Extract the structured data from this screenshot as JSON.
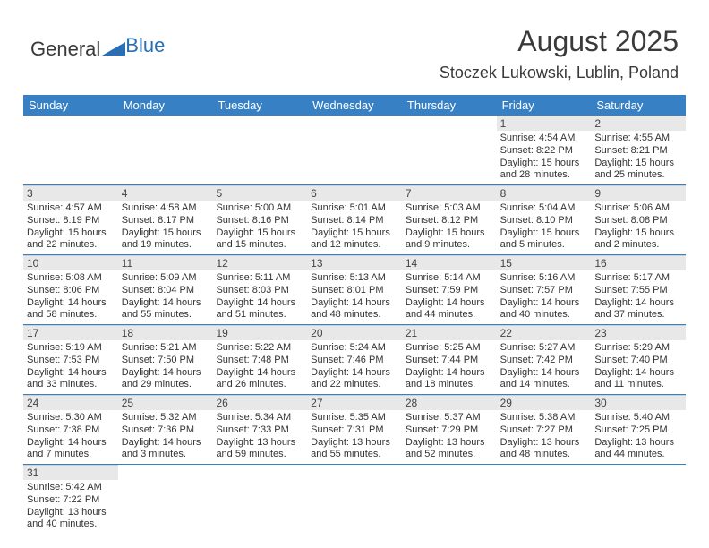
{
  "logo": {
    "general": "General",
    "blue": "Blue"
  },
  "title": "August 2025",
  "location": "Stoczek Lukowski, Lublin, Poland",
  "colors": {
    "header_bg": "#3880c4",
    "header_fg": "#ffffff",
    "daynum_bg": "#e8e8e8",
    "row_border": "#3880c4",
    "text": "#333333",
    "logo_blue": "#2a6fb3"
  },
  "day_headers": [
    "Sunday",
    "Monday",
    "Tuesday",
    "Wednesday",
    "Thursday",
    "Friday",
    "Saturday"
  ],
  "weeks": [
    [
      {
        "empty": true
      },
      {
        "empty": true
      },
      {
        "empty": true
      },
      {
        "empty": true
      },
      {
        "empty": true
      },
      {
        "day": "1",
        "sunrise": "Sunrise: 4:54 AM",
        "sunset": "Sunset: 8:22 PM",
        "daylight1": "Daylight: 15 hours",
        "daylight2": "and 28 minutes."
      },
      {
        "day": "2",
        "sunrise": "Sunrise: 4:55 AM",
        "sunset": "Sunset: 8:21 PM",
        "daylight1": "Daylight: 15 hours",
        "daylight2": "and 25 minutes."
      }
    ],
    [
      {
        "day": "3",
        "sunrise": "Sunrise: 4:57 AM",
        "sunset": "Sunset: 8:19 PM",
        "daylight1": "Daylight: 15 hours",
        "daylight2": "and 22 minutes."
      },
      {
        "day": "4",
        "sunrise": "Sunrise: 4:58 AM",
        "sunset": "Sunset: 8:17 PM",
        "daylight1": "Daylight: 15 hours",
        "daylight2": "and 19 minutes."
      },
      {
        "day": "5",
        "sunrise": "Sunrise: 5:00 AM",
        "sunset": "Sunset: 8:16 PM",
        "daylight1": "Daylight: 15 hours",
        "daylight2": "and 15 minutes."
      },
      {
        "day": "6",
        "sunrise": "Sunrise: 5:01 AM",
        "sunset": "Sunset: 8:14 PM",
        "daylight1": "Daylight: 15 hours",
        "daylight2": "and 12 minutes."
      },
      {
        "day": "7",
        "sunrise": "Sunrise: 5:03 AM",
        "sunset": "Sunset: 8:12 PM",
        "daylight1": "Daylight: 15 hours",
        "daylight2": "and 9 minutes."
      },
      {
        "day": "8",
        "sunrise": "Sunrise: 5:04 AM",
        "sunset": "Sunset: 8:10 PM",
        "daylight1": "Daylight: 15 hours",
        "daylight2": "and 5 minutes."
      },
      {
        "day": "9",
        "sunrise": "Sunrise: 5:06 AM",
        "sunset": "Sunset: 8:08 PM",
        "daylight1": "Daylight: 15 hours",
        "daylight2": "and 2 minutes."
      }
    ],
    [
      {
        "day": "10",
        "sunrise": "Sunrise: 5:08 AM",
        "sunset": "Sunset: 8:06 PM",
        "daylight1": "Daylight: 14 hours",
        "daylight2": "and 58 minutes."
      },
      {
        "day": "11",
        "sunrise": "Sunrise: 5:09 AM",
        "sunset": "Sunset: 8:04 PM",
        "daylight1": "Daylight: 14 hours",
        "daylight2": "and 55 minutes."
      },
      {
        "day": "12",
        "sunrise": "Sunrise: 5:11 AM",
        "sunset": "Sunset: 8:03 PM",
        "daylight1": "Daylight: 14 hours",
        "daylight2": "and 51 minutes."
      },
      {
        "day": "13",
        "sunrise": "Sunrise: 5:13 AM",
        "sunset": "Sunset: 8:01 PM",
        "daylight1": "Daylight: 14 hours",
        "daylight2": "and 48 minutes."
      },
      {
        "day": "14",
        "sunrise": "Sunrise: 5:14 AM",
        "sunset": "Sunset: 7:59 PM",
        "daylight1": "Daylight: 14 hours",
        "daylight2": "and 44 minutes."
      },
      {
        "day": "15",
        "sunrise": "Sunrise: 5:16 AM",
        "sunset": "Sunset: 7:57 PM",
        "daylight1": "Daylight: 14 hours",
        "daylight2": "and 40 minutes."
      },
      {
        "day": "16",
        "sunrise": "Sunrise: 5:17 AM",
        "sunset": "Sunset: 7:55 PM",
        "daylight1": "Daylight: 14 hours",
        "daylight2": "and 37 minutes."
      }
    ],
    [
      {
        "day": "17",
        "sunrise": "Sunrise: 5:19 AM",
        "sunset": "Sunset: 7:53 PM",
        "daylight1": "Daylight: 14 hours",
        "daylight2": "and 33 minutes."
      },
      {
        "day": "18",
        "sunrise": "Sunrise: 5:21 AM",
        "sunset": "Sunset: 7:50 PM",
        "daylight1": "Daylight: 14 hours",
        "daylight2": "and 29 minutes."
      },
      {
        "day": "19",
        "sunrise": "Sunrise: 5:22 AM",
        "sunset": "Sunset: 7:48 PM",
        "daylight1": "Daylight: 14 hours",
        "daylight2": "and 26 minutes."
      },
      {
        "day": "20",
        "sunrise": "Sunrise: 5:24 AM",
        "sunset": "Sunset: 7:46 PM",
        "daylight1": "Daylight: 14 hours",
        "daylight2": "and 22 minutes."
      },
      {
        "day": "21",
        "sunrise": "Sunrise: 5:25 AM",
        "sunset": "Sunset: 7:44 PM",
        "daylight1": "Daylight: 14 hours",
        "daylight2": "and 18 minutes."
      },
      {
        "day": "22",
        "sunrise": "Sunrise: 5:27 AM",
        "sunset": "Sunset: 7:42 PM",
        "daylight1": "Daylight: 14 hours",
        "daylight2": "and 14 minutes."
      },
      {
        "day": "23",
        "sunrise": "Sunrise: 5:29 AM",
        "sunset": "Sunset: 7:40 PM",
        "daylight1": "Daylight: 14 hours",
        "daylight2": "and 11 minutes."
      }
    ],
    [
      {
        "day": "24",
        "sunrise": "Sunrise: 5:30 AM",
        "sunset": "Sunset: 7:38 PM",
        "daylight1": "Daylight: 14 hours",
        "daylight2": "and 7 minutes."
      },
      {
        "day": "25",
        "sunrise": "Sunrise: 5:32 AM",
        "sunset": "Sunset: 7:36 PM",
        "daylight1": "Daylight: 14 hours",
        "daylight2": "and 3 minutes."
      },
      {
        "day": "26",
        "sunrise": "Sunrise: 5:34 AM",
        "sunset": "Sunset: 7:33 PM",
        "daylight1": "Daylight: 13 hours",
        "daylight2": "and 59 minutes."
      },
      {
        "day": "27",
        "sunrise": "Sunrise: 5:35 AM",
        "sunset": "Sunset: 7:31 PM",
        "daylight1": "Daylight: 13 hours",
        "daylight2": "and 55 minutes."
      },
      {
        "day": "28",
        "sunrise": "Sunrise: 5:37 AM",
        "sunset": "Sunset: 7:29 PM",
        "daylight1": "Daylight: 13 hours",
        "daylight2": "and 52 minutes."
      },
      {
        "day": "29",
        "sunrise": "Sunrise: 5:38 AM",
        "sunset": "Sunset: 7:27 PM",
        "daylight1": "Daylight: 13 hours",
        "daylight2": "and 48 minutes."
      },
      {
        "day": "30",
        "sunrise": "Sunrise: 5:40 AM",
        "sunset": "Sunset: 7:25 PM",
        "daylight1": "Daylight: 13 hours",
        "daylight2": "and 44 minutes."
      }
    ],
    [
      {
        "day": "31",
        "sunrise": "Sunrise: 5:42 AM",
        "sunset": "Sunset: 7:22 PM",
        "daylight1": "Daylight: 13 hours",
        "daylight2": "and 40 minutes."
      },
      {
        "empty": true
      },
      {
        "empty": true
      },
      {
        "empty": true
      },
      {
        "empty": true
      },
      {
        "empty": true
      },
      {
        "empty": true
      }
    ]
  ]
}
